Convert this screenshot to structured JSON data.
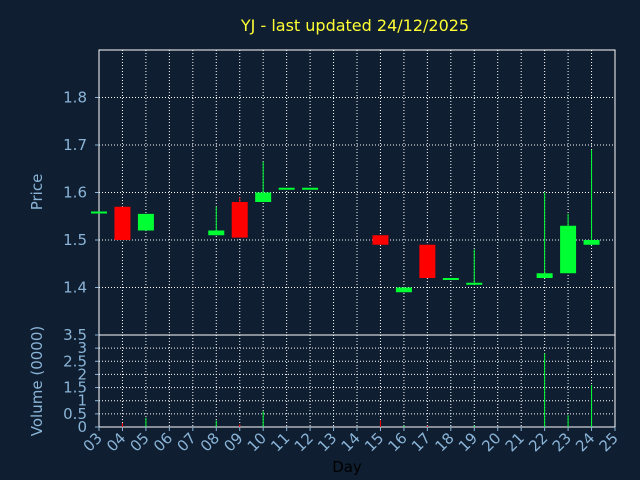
{
  "chart_data": {
    "type": "candlestick",
    "title": "YJ - last updated 24/12/2025",
    "xlabel": "Day",
    "price_panel": {
      "ylabel": "Price",
      "ylim": [
        1.3,
        1.9
      ],
      "yticks": [
        "1.8",
        "1.7",
        "1.6",
        "1.5",
        "1.4"
      ],
      "grid": true
    },
    "volume_panel": {
      "ylabel": "Volume (0000)",
      "ylim": [
        0,
        3.5
      ],
      "yticks": [
        "3.5",
        "3",
        "2.5",
        "2",
        "1.5",
        "1",
        "0.5",
        "0"
      ],
      "grid": true
    },
    "x_ticks": [
      "03",
      "04",
      "05",
      "06",
      "07",
      "08",
      "09",
      "10",
      "11",
      "12",
      "13",
      "14",
      "15",
      "16",
      "17",
      "18",
      "19",
      "20",
      "21",
      "22",
      "23",
      "24",
      "25"
    ],
    "candles": [
      {
        "day": 3,
        "open": 1.56,
        "high": 1.56,
        "low": 1.56,
        "close": 1.56,
        "volume": 0.0
      },
      {
        "day": 4,
        "open": 1.57,
        "high": 1.57,
        "low": 1.5,
        "close": 1.5,
        "volume": 0.15
      },
      {
        "day": 5,
        "open": 1.52,
        "high": 1.555,
        "low": 1.52,
        "close": 1.555,
        "volume": 0.35
      },
      {
        "day": 8,
        "open": 1.51,
        "high": 1.57,
        "low": 1.51,
        "close": 1.52,
        "volume": 0.25
      },
      {
        "day": 9,
        "open": 1.58,
        "high": 1.59,
        "low": 1.505,
        "close": 1.505,
        "volume": 0.1
      },
      {
        "day": 10,
        "open": 1.58,
        "high": 1.665,
        "low": 1.58,
        "close": 1.6,
        "volume": 0.6
      },
      {
        "day": 11,
        "open": 1.61,
        "high": 1.61,
        "low": 1.61,
        "close": 1.61,
        "volume": 0.0
      },
      {
        "day": 12,
        "open": 1.61,
        "high": 1.61,
        "low": 1.61,
        "close": 1.61,
        "volume": 0.0
      },
      {
        "day": 15,
        "open": 1.51,
        "high": 1.51,
        "low": 1.49,
        "close": 1.49,
        "volume": 0.25
      },
      {
        "day": 16,
        "open": 1.39,
        "high": 1.4,
        "low": 1.39,
        "close": 1.4,
        "volume": 0.05
      },
      {
        "day": 17,
        "open": 1.49,
        "high": 1.49,
        "low": 1.42,
        "close": 1.42,
        "volume": 0.05
      },
      {
        "day": 18,
        "open": 1.42,
        "high": 1.42,
        "low": 1.42,
        "close": 1.42,
        "volume": 0.0
      },
      {
        "day": 19,
        "open": 1.41,
        "high": 1.48,
        "low": 1.41,
        "close": 1.41,
        "volume": 0.05
      },
      {
        "day": 22,
        "open": 1.42,
        "high": 1.6,
        "low": 1.42,
        "close": 1.43,
        "volume": 2.8
      },
      {
        "day": 23,
        "open": 1.43,
        "high": 1.555,
        "low": 1.43,
        "close": 1.53,
        "volume": 0.45
      },
      {
        "day": 24,
        "open": 1.49,
        "high": 1.69,
        "low": 1.49,
        "close": 1.5,
        "volume": 1.6
      }
    ],
    "colors": {
      "background": "#0f1e30",
      "up": "#00ff33",
      "down": "#ff0000",
      "axis": "#8ab4d8",
      "grid": "#ffffff",
      "title": "#ffff33",
      "xlabel": "#000000"
    }
  }
}
